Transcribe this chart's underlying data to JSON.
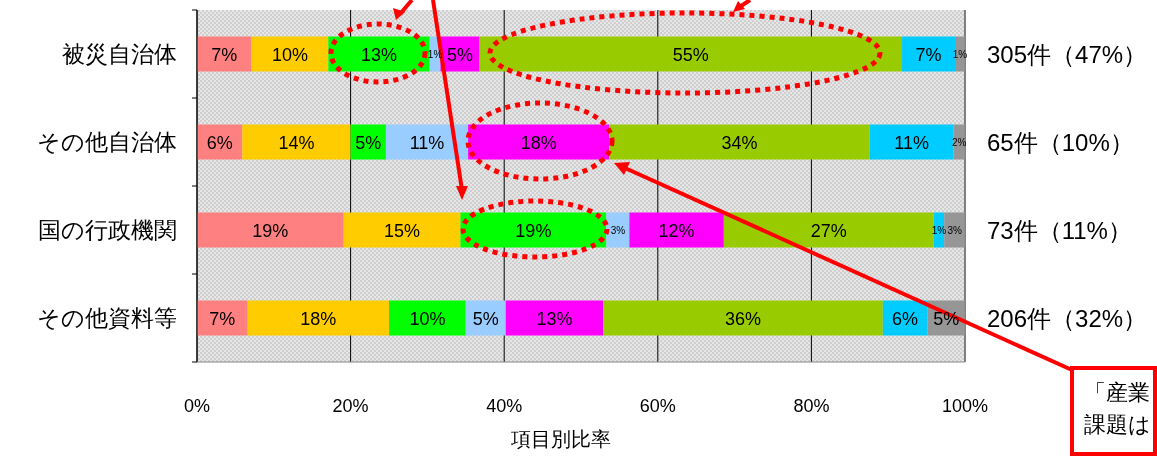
{
  "chart_data": {
    "type": "bar",
    "orientation": "horizontal",
    "stacked": true,
    "categories": [
      "被災自治体",
      "その他自治体",
      "国の行政機関",
      "その他資料等"
    ],
    "series": [
      {
        "color": "#ff8080",
        "values": [
          7.1,
          5.9,
          19.1,
          6.6
        ],
        "value_labels": [
          "7%",
          "6%",
          "19%",
          "7%"
        ]
      },
      {
        "color": "#ffcc00",
        "values": [
          10,
          14.1,
          15.2,
          18.4
        ],
        "value_labels": [
          "10%",
          "14%",
          "15%",
          "18%"
        ]
      },
      {
        "color": "#00ff00",
        "values": [
          13.2,
          4.6,
          19,
          10
        ],
        "value_labels": [
          "13%",
          "5%",
          "19%",
          "10%"
        ]
      },
      {
        "color": "#99ccff",
        "values": [
          1.4,
          10.7,
          3,
          5.2
        ],
        "value_labels": [
          "1%",
          "11%",
          "3%",
          "5%"
        ]
      },
      {
        "color": "#ff00ff",
        "values": [
          5.1,
          18.4,
          12.3,
          12.7
        ],
        "value_labels": [
          "5%",
          "18%",
          "12%",
          "13%"
        ]
      },
      {
        "color": "#99cc00",
        "values": [
          55,
          33.9,
          27.3,
          36.4
        ],
        "value_labels": [
          "55%",
          "34%",
          "27%",
          "36%"
        ]
      },
      {
        "color": "#00ccff",
        "values": [
          6.9,
          10.9,
          1.4,
          5.8
        ],
        "value_labels": [
          "7%",
          "11%",
          "1%",
          "6%"
        ]
      },
      {
        "color": "#969696",
        "values": [
          1.3,
          1.5,
          2.7,
          4.9
        ],
        "value_labels": [
          "1%",
          "2%",
          "3%",
          "5%"
        ]
      }
    ],
    "xlim": [
      0,
      100
    ],
    "xticks": [
      {
        "value": 0,
        "label": "0%"
      },
      {
        "value": 20,
        "label": "20%"
      },
      {
        "value": 40,
        "label": "40%"
      },
      {
        "value": 60,
        "label": "60%"
      },
      {
        "value": 80,
        "label": "80%"
      },
      {
        "value": 100,
        "label": "100%"
      }
    ],
    "xlabel": "項目別比率",
    "grid": "x",
    "annotations": [
      "305件（47%）",
      "65件（10%）",
      "73件（11%）",
      "206件（32%）",
      "「産業",
      "課題は"
    ]
  }
}
